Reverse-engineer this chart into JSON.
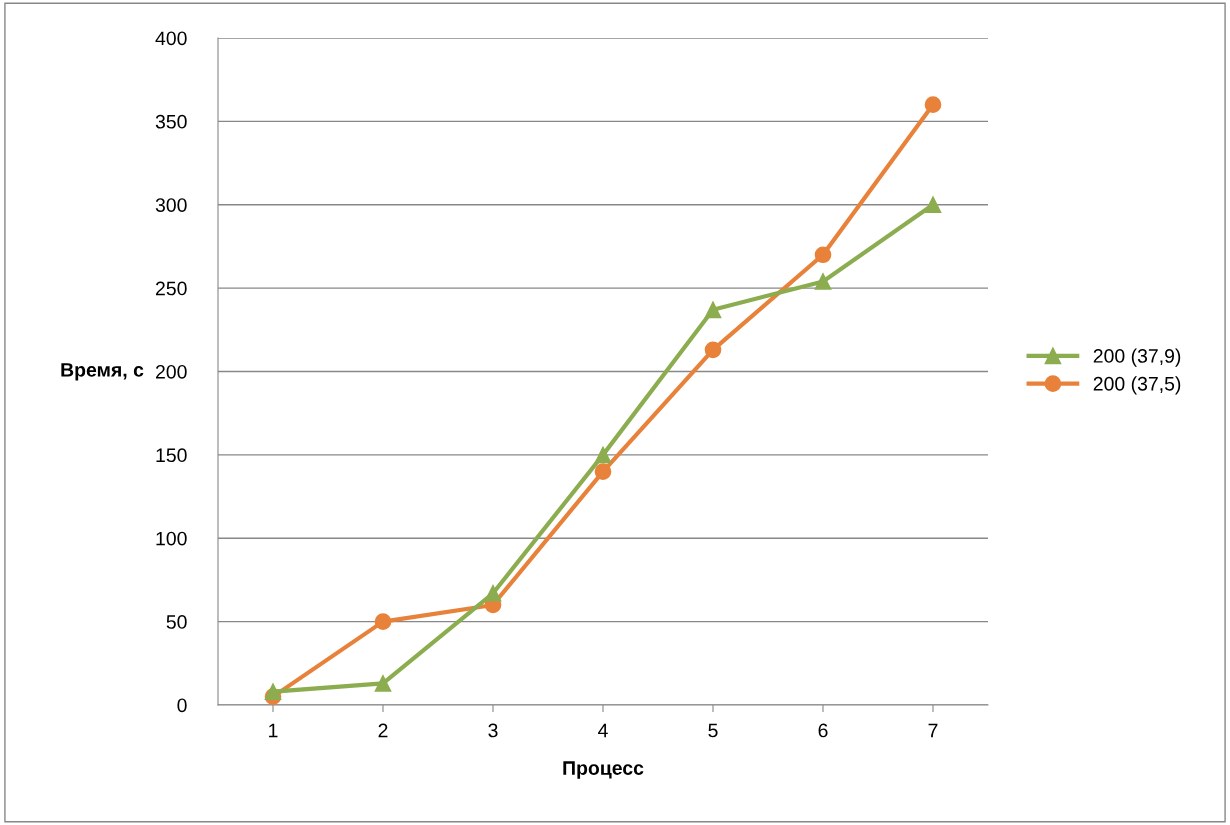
{
  "chart_data": {
    "type": "line",
    "xlabel": "Процесс",
    "ylabel": "Время, с",
    "categories": [
      "1",
      "2",
      "3",
      "4",
      "5",
      "6",
      "7"
    ],
    "series": [
      {
        "name": "200 (37,9)",
        "color": "#8cad4f",
        "marker": "triangle",
        "values": [
          8,
          13,
          67,
          150,
          237,
          254,
          300
        ]
      },
      {
        "name": "200 (37,5)",
        "color": "#e8823a",
        "marker": "circle",
        "values": [
          5,
          50,
          60,
          140,
          213,
          270,
          360
        ]
      }
    ],
    "ylim": [
      0,
      400
    ],
    "yticks": [
      0,
      50,
      100,
      150,
      200,
      250,
      300,
      350,
      400
    ],
    "grid": "y",
    "legend": "right"
  }
}
